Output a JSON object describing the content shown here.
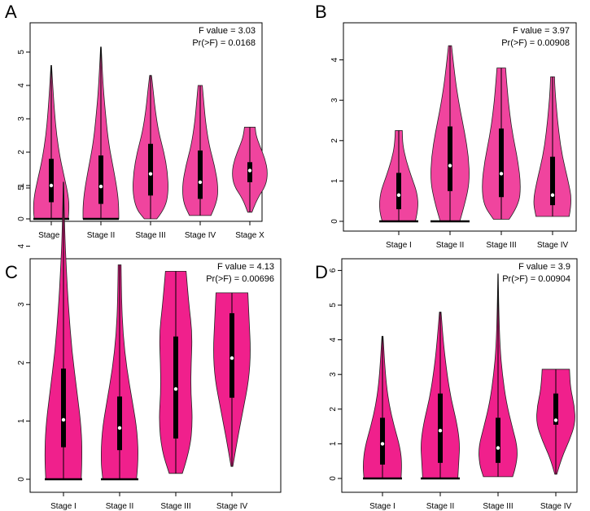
{
  "chart_data": [
    {
      "type": "violin",
      "panel_label": "A",
      "stats": [
        "F value = 3.03",
        "Pr(>F) = 0.0168"
      ],
      "ylim": [
        0,
        5.6
      ],
      "yticks": [
        0,
        1,
        2,
        3,
        4,
        5
      ],
      "color": "#f0449e",
      "categories": [
        "Stage I",
        "Stage II",
        "Stage III",
        "Stage IV",
        "Stage X"
      ],
      "violins": [
        {
          "min": 0,
          "max": 4.6,
          "median": 1.0,
          "q1": 0.5,
          "q3": 1.8,
          "floor_bar": true,
          "shape": [
            [
              0,
              0.95
            ],
            [
              0.3,
              1.0
            ],
            [
              0.7,
              0.95
            ],
            [
              1.2,
              0.75
            ],
            [
              1.8,
              0.5
            ],
            [
              2.5,
              0.3
            ],
            [
              3.2,
              0.18
            ],
            [
              4.0,
              0.08
            ],
            [
              4.6,
              0.02
            ]
          ]
        },
        {
          "min": 0,
          "max": 5.15,
          "median": 0.97,
          "q1": 0.45,
          "q3": 1.9,
          "floor_bar": true,
          "shape": [
            [
              0,
              1.0
            ],
            [
              0.4,
              1.0
            ],
            [
              0.9,
              0.9
            ],
            [
              1.5,
              0.7
            ],
            [
              2.2,
              0.45
            ],
            [
              3.0,
              0.28
            ],
            [
              4.0,
              0.12
            ],
            [
              5.15,
              0.02
            ]
          ]
        },
        {
          "min": 0.0,
          "max": 4.3,
          "median": 1.35,
          "q1": 0.7,
          "q3": 2.25,
          "floor_bar": false,
          "shape": [
            [
              0.0,
              0.35
            ],
            [
              0.3,
              0.8
            ],
            [
              0.8,
              1.0
            ],
            [
              1.4,
              0.95
            ],
            [
              2.0,
              0.75
            ],
            [
              2.6,
              0.45
            ],
            [
              3.3,
              0.25
            ],
            [
              4.0,
              0.12
            ],
            [
              4.3,
              0.05
            ]
          ]
        },
        {
          "min": 0.1,
          "max": 4.0,
          "median": 1.1,
          "q1": 0.6,
          "q3": 2.05,
          "floor_bar": false,
          "shape": [
            [
              0.1,
              0.6
            ],
            [
              0.5,
              0.95
            ],
            [
              1.0,
              1.0
            ],
            [
              1.6,
              0.8
            ],
            [
              2.2,
              0.5
            ],
            [
              2.9,
              0.3
            ],
            [
              3.5,
              0.2
            ],
            [
              4.0,
              0.12
            ]
          ]
        },
        {
          "min": 0.2,
          "max": 2.75,
          "median": 1.45,
          "q1": 1.1,
          "q3": 1.7,
          "floor_bar": false,
          "shape": [
            [
              0.2,
              0.12
            ],
            [
              0.6,
              0.4
            ],
            [
              1.0,
              0.9
            ],
            [
              1.4,
              1.0
            ],
            [
              1.8,
              0.85
            ],
            [
              2.2,
              0.55
            ],
            [
              2.5,
              0.35
            ],
            [
              2.75,
              0.3
            ]
          ]
        }
      ]
    },
    {
      "type": "violin",
      "panel_label": "B",
      "stats": [
        "F value = 3.97",
        "Pr(>F) = 0.00908"
      ],
      "ylim": [
        0,
        4.5
      ],
      "yticks": [
        0,
        1,
        2,
        3,
        4
      ],
      "color": "#f0449e",
      "categories": [
        "Stage I",
        "Stage II",
        "Stage III",
        "Stage IV"
      ],
      "violins": [
        {
          "min": 0,
          "max": 2.25,
          "median": 0.65,
          "q1": 0.3,
          "q3": 1.2,
          "floor_bar": true,
          "shape": [
            [
              0,
              0.85
            ],
            [
              0.3,
              1.0
            ],
            [
              0.7,
              0.95
            ],
            [
              1.1,
              0.65
            ],
            [
              1.5,
              0.38
            ],
            [
              1.9,
              0.2
            ],
            [
              2.25,
              0.18
            ]
          ]
        },
        {
          "min": 0,
          "max": 4.35,
          "median": 1.38,
          "q1": 0.75,
          "q3": 2.35,
          "floor_bar": true,
          "shape": [
            [
              0,
              0.5
            ],
            [
              0.5,
              0.8
            ],
            [
              1.0,
              1.0
            ],
            [
              1.6,
              0.95
            ],
            [
              2.2,
              0.75
            ],
            [
              2.8,
              0.5
            ],
            [
              3.4,
              0.3
            ],
            [
              3.9,
              0.18
            ],
            [
              4.35,
              0.08
            ]
          ]
        },
        {
          "min": 0.05,
          "max": 3.8,
          "median": 1.18,
          "q1": 0.6,
          "q3": 2.3,
          "floor_bar": false,
          "shape": [
            [
              0.05,
              0.4
            ],
            [
              0.4,
              0.9
            ],
            [
              0.9,
              1.0
            ],
            [
              1.5,
              0.85
            ],
            [
              2.1,
              0.6
            ],
            [
              2.7,
              0.42
            ],
            [
              3.3,
              0.3
            ],
            [
              3.8,
              0.22
            ]
          ]
        },
        {
          "min": 0.12,
          "max": 3.58,
          "median": 0.65,
          "q1": 0.4,
          "q3": 1.6,
          "floor_bar": false,
          "shape": [
            [
              0.12,
              0.85
            ],
            [
              0.5,
              1.0
            ],
            [
              1.0,
              0.8
            ],
            [
              1.6,
              0.5
            ],
            [
              2.2,
              0.32
            ],
            [
              2.8,
              0.2
            ],
            [
              3.3,
              0.12
            ],
            [
              3.58,
              0.1
            ]
          ]
        }
      ]
    },
    {
      "type": "violin",
      "panel_label": "C",
      "stats": [
        "F value = 4.13",
        "Pr(>F) = 0.00696"
      ],
      "ylim": [
        0,
        5.6
      ],
      "yticks": [
        0,
        1,
        2,
        3,
        4,
        5
      ],
      "color": "#f0208c",
      "categories": [
        "Stage I",
        "Stage II",
        "Stage III",
        "Stage IV"
      ],
      "violins": [
        {
          "min": 0,
          "max": 5.1,
          "median": 1.02,
          "q1": 0.55,
          "q3": 1.9,
          "floor_bar": true,
          "shape": [
            [
              0,
              0.95
            ],
            [
              0.4,
              1.0
            ],
            [
              0.9,
              0.95
            ],
            [
              1.5,
              0.72
            ],
            [
              2.2,
              0.45
            ],
            [
              2.9,
              0.28
            ],
            [
              3.6,
              0.15
            ],
            [
              4.3,
              0.06
            ],
            [
              5.1,
              0.01
            ]
          ]
        },
        {
          "min": 0,
          "max": 3.68,
          "median": 0.88,
          "q1": 0.5,
          "q3": 1.42,
          "floor_bar": true,
          "shape": [
            [
              0,
              0.9
            ],
            [
              0.3,
              1.0
            ],
            [
              0.8,
              0.95
            ],
            [
              1.3,
              0.7
            ],
            [
              1.9,
              0.38
            ],
            [
              2.5,
              0.18
            ],
            [
              3.1,
              0.1
            ],
            [
              3.68,
              0.08
            ]
          ]
        },
        {
          "min": 0.1,
          "max": 3.57,
          "median": 1.55,
          "q1": 0.7,
          "q3": 2.45,
          "floor_bar": false,
          "shape": [
            [
              0.1,
              0.35
            ],
            [
              0.5,
              0.75
            ],
            [
              1.0,
              0.9
            ],
            [
              1.5,
              0.8
            ],
            [
              2.0,
              0.82
            ],
            [
              2.5,
              0.88
            ],
            [
              3.0,
              0.7
            ],
            [
              3.57,
              0.55
            ]
          ]
        },
        {
          "min": 0.22,
          "max": 3.2,
          "median": 2.08,
          "q1": 1.4,
          "q3": 2.85,
          "floor_bar": false,
          "shape": [
            [
              0.22,
              0.05
            ],
            [
              0.7,
              0.3
            ],
            [
              1.2,
              0.6
            ],
            [
              1.7,
              0.9
            ],
            [
              2.2,
              1.0
            ],
            [
              2.7,
              0.92
            ],
            [
              3.2,
              0.85
            ]
          ]
        }
      ]
    },
    {
      "type": "violin",
      "panel_label": "D",
      "stats": [
        "F value = 3.9",
        "Pr(>F) = 0.00904"
      ],
      "ylim": [
        0,
        6.6
      ],
      "yticks": [
        0,
        1,
        2,
        3,
        4,
        5,
        6
      ],
      "color": "#f0208c",
      "categories": [
        "Stage I",
        "Stage II",
        "Stage III",
        "Stage IV"
      ],
      "violins": [
        {
          "min": 0,
          "max": 4.1,
          "median": 1.0,
          "q1": 0.4,
          "q3": 1.75,
          "floor_bar": true,
          "shape": [
            [
              0,
              0.95
            ],
            [
              0.4,
              1.0
            ],
            [
              0.9,
              0.9
            ],
            [
              1.5,
              0.6
            ],
            [
              2.1,
              0.35
            ],
            [
              2.7,
              0.2
            ],
            [
              3.4,
              0.1
            ],
            [
              4.1,
              0.03
            ]
          ]
        },
        {
          "min": 0,
          "max": 4.8,
          "median": 1.38,
          "q1": 0.45,
          "q3": 2.45,
          "floor_bar": true,
          "shape": [
            [
              0,
              0.9
            ],
            [
              0.5,
              0.95
            ],
            [
              1.0,
              1.0
            ],
            [
              1.6,
              0.85
            ],
            [
              2.3,
              0.55
            ],
            [
              3.0,
              0.35
            ],
            [
              3.8,
              0.18
            ],
            [
              4.8,
              0.04
            ]
          ]
        },
        {
          "min": 0.05,
          "max": 5.9,
          "median": 0.88,
          "q1": 0.45,
          "q3": 1.75,
          "floor_bar": false,
          "shape": [
            [
              0.05,
              0.75
            ],
            [
              0.4,
              0.95
            ],
            [
              0.9,
              1.0
            ],
            [
              1.5,
              0.72
            ],
            [
              2.2,
              0.42
            ],
            [
              3.0,
              0.22
            ],
            [
              3.8,
              0.1
            ],
            [
              4.8,
              0.04
            ],
            [
              5.9,
              0.01
            ]
          ]
        },
        {
          "min": 0.12,
          "max": 3.15,
          "median": 1.68,
          "q1": 1.55,
          "q3": 2.45,
          "floor_bar": false,
          "shape": [
            [
              0.12,
              0.05
            ],
            [
              0.6,
              0.3
            ],
            [
              1.1,
              0.7
            ],
            [
              1.6,
              1.0
            ],
            [
              2.1,
              0.95
            ],
            [
              2.6,
              0.75
            ],
            [
              3.15,
              0.7
            ]
          ]
        }
      ]
    }
  ]
}
